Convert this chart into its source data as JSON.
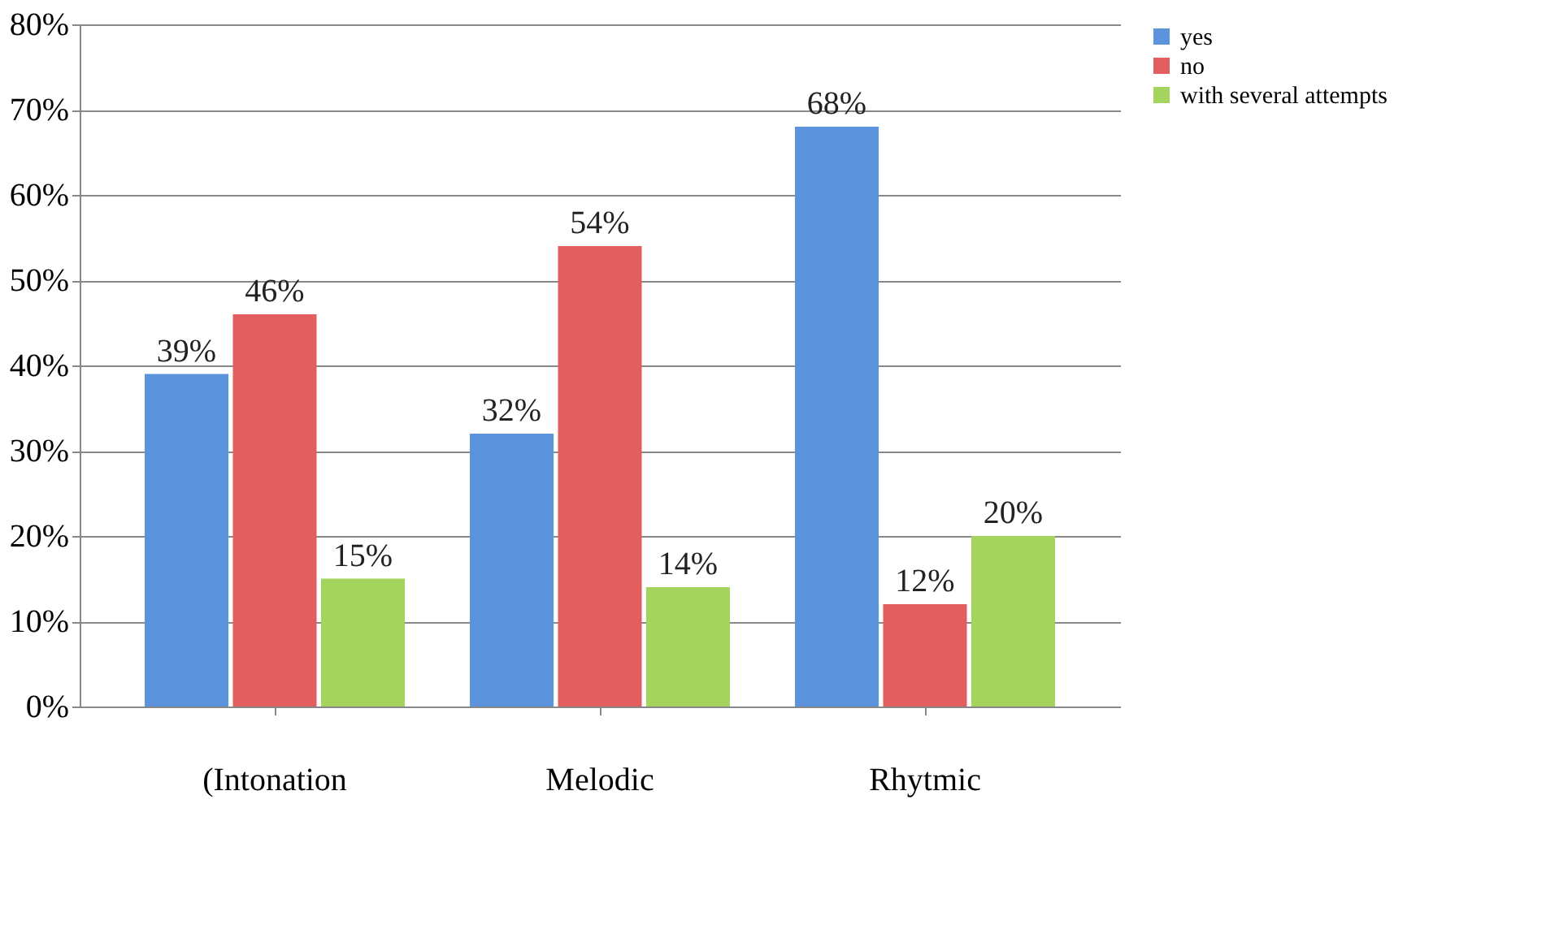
{
  "chart_data": {
    "type": "bar",
    "categories": [
      "(Intonation",
      "Melodic",
      "Rhytmic"
    ],
    "series": [
      {
        "name": "yes",
        "color": "#5b93dc",
        "values": [
          39,
          32,
          68
        ],
        "value_labels": [
          "39%",
          "32%",
          "68%"
        ]
      },
      {
        "name": "no",
        "color": "#e35f5f",
        "values": [
          46,
          54,
          12
        ],
        "value_labels": [
          "46%",
          "54%",
          "12%"
        ]
      },
      {
        "name": "with several attempts",
        "color": "#a5d45e",
        "values": [
          15,
          14,
          20
        ],
        "value_labels": [
          "15%",
          "14%",
          "20%"
        ]
      }
    ],
    "ylim": [
      0,
      80
    ],
    "yticks": [
      {
        "value": 0,
        "label": "0%"
      },
      {
        "value": 10,
        "label": "10%"
      },
      {
        "value": 20,
        "label": "20%"
      },
      {
        "value": 30,
        "label": "30%"
      },
      {
        "value": 40,
        "label": "40%"
      },
      {
        "value": 50,
        "label": "50%"
      },
      {
        "value": 60,
        "label": "60%"
      },
      {
        "value": 70,
        "label": "70%"
      },
      {
        "value": 80,
        "label": "80%"
      }
    ],
    "grid": "y",
    "legend": "right"
  }
}
